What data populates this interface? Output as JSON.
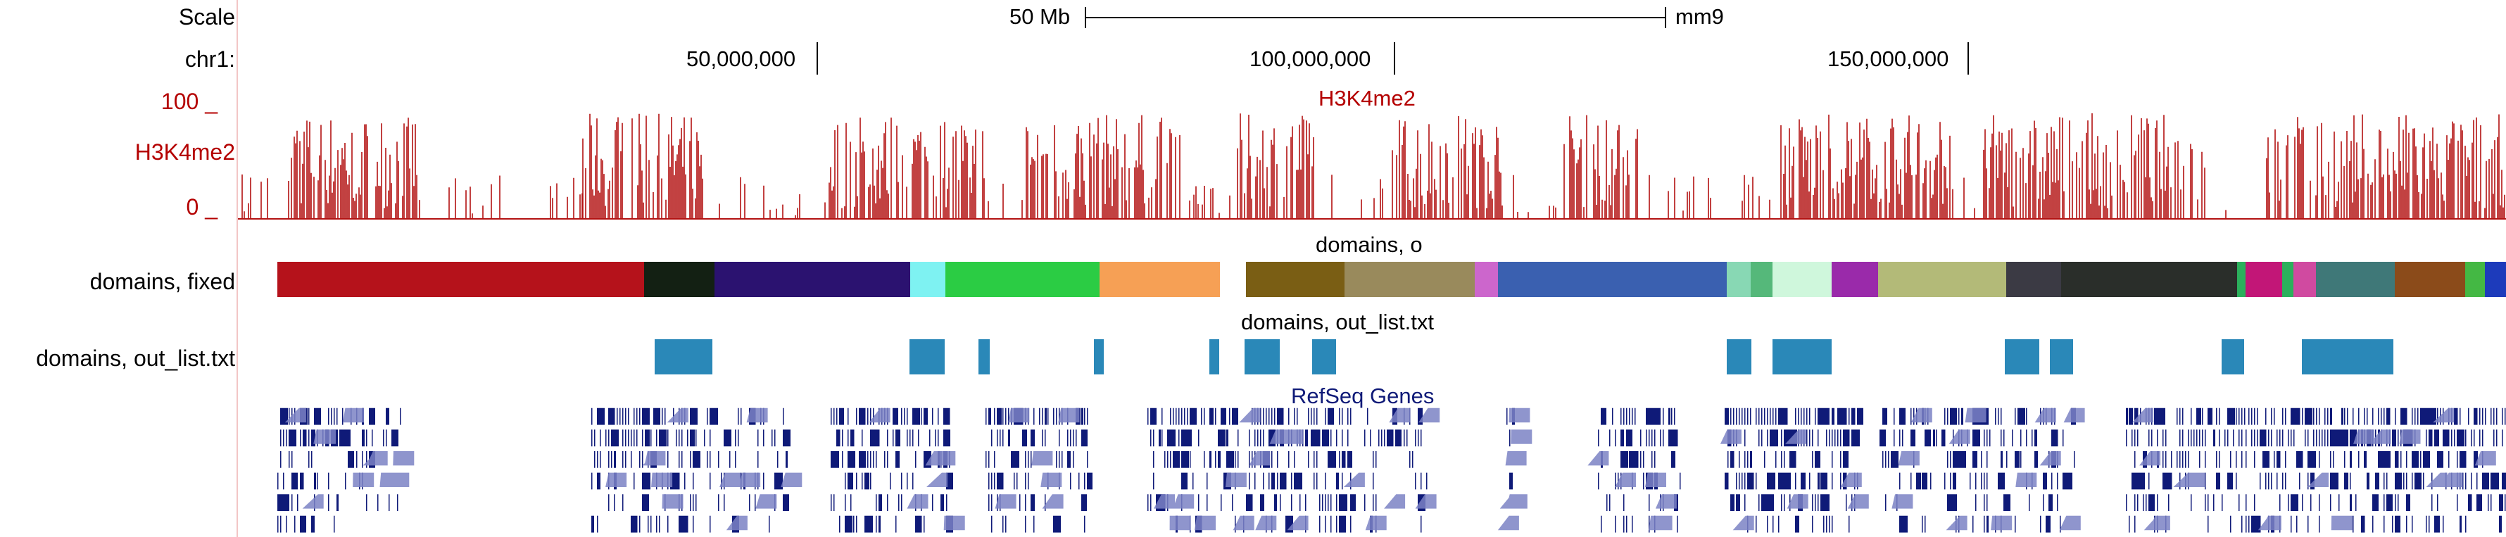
{
  "header": {
    "scale_label": "Scale",
    "scale_value": "50 Mb",
    "assembly": "mm9",
    "chrom_label": "chr1:",
    "positions": [
      "50,000,000",
      "100,000,000",
      "150,000,000"
    ]
  },
  "tracks": {
    "h3k4me2": {
      "left_label": "H3K4me2",
      "center_label": "H3K4me2",
      "max_label": "100 _",
      "min_label": "0 _",
      "color": "#b31212"
    },
    "domains_fixed": {
      "left_label": "domains, fixed",
      "center_label": "domains, o",
      "colors": [
        "#b5121b",
        "#132013",
        "#2b1270",
        "#7ef2f2",
        "#2bcc44",
        "#f6a055",
        "#7a5e14",
        "#998a5c",
        "#cc66cc",
        "#3a60b0",
        "#88d8b4",
        "#55b87a",
        "#cff7dc",
        "#9a2aaa",
        "#b3ba78",
        "#3b3a44",
        "#2a2e2a",
        "#2bb05c",
        "#c21677",
        "#d04aa0",
        "#3f7878",
        "#8b4b1a",
        "#44b844",
        "#1d3bbb"
      ]
    },
    "domains_outlist": {
      "left_label": "domains, out_list.txt",
      "center_label": "domains, out_list.txt",
      "color": "#2a88b8"
    },
    "refseq": {
      "center_label": "RefSeq Genes",
      "color": "#0f1a78"
    }
  }
}
